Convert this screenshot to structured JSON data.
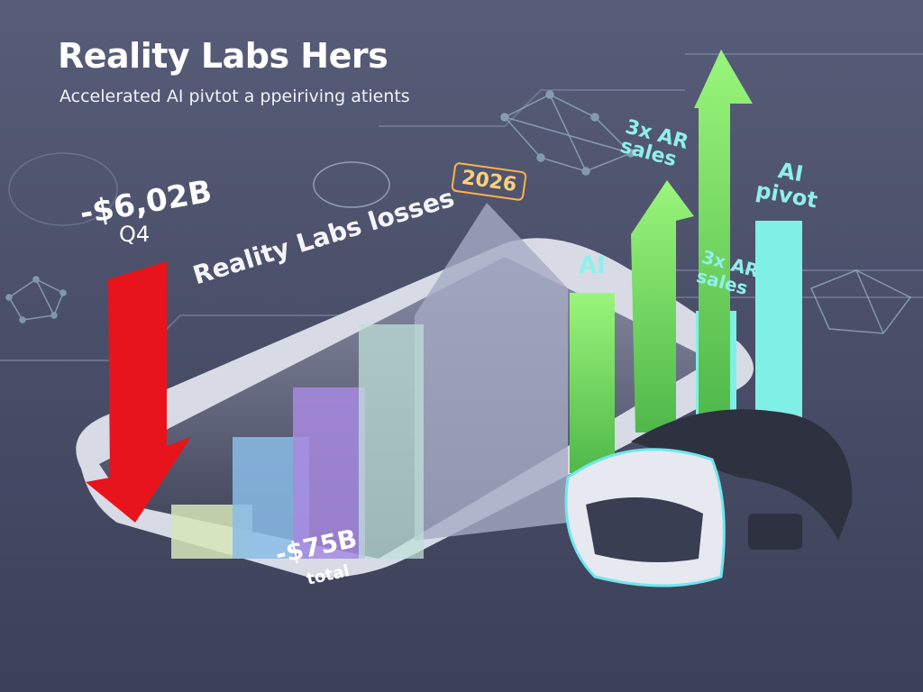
{
  "header": {
    "title": "Reality Labs Hers",
    "subtitle": "Accelerated AI pivtot a ppeiriving atients"
  },
  "labels": {
    "q4_loss_value": "-$6,02B",
    "q4_loss_period": "Q4",
    "losses_caption": "Reality Labs losses",
    "year_tag": "2026",
    "ai": "AI",
    "ar_sales_top": "3x AR sales",
    "ar_sales_bottom": "3x AR sales",
    "ai_pivot": "AI pivot",
    "total_value": "-$75B",
    "total_caption": "total"
  },
  "colors": {
    "background": "#4a4f68",
    "loss_arrow": "#e8141c",
    "growth_arrow": "#8ef06a",
    "ai_bar": "#7ff0e6",
    "year_tag": "#ffb347"
  },
  "icons": [
    "vr-headset-icon",
    "neural-network-icon",
    "brain-icon"
  ]
}
